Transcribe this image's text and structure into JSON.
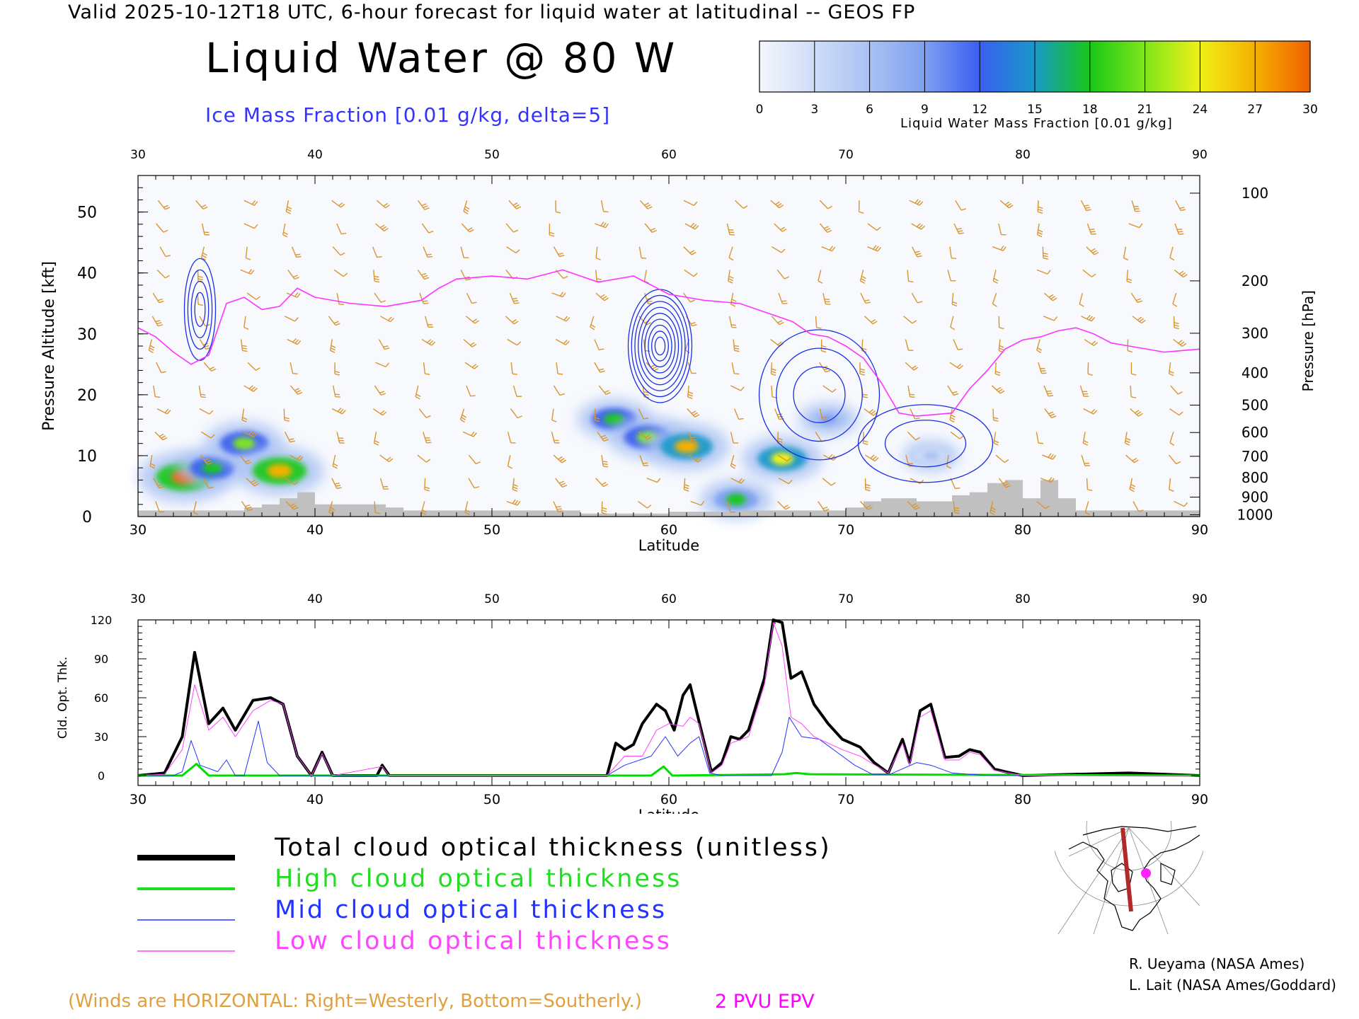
{
  "header": {
    "top_title": "Valid 2025-10-12T18 UTC, 6-hour forecast for liquid water at latitudinal -- GEOS FP",
    "main_title": "Liquid Water @ 80 W",
    "ice_label": "Ice Mass Fraction [0.01 g/kg, delta=5]"
  },
  "colorbar": {
    "label": "Liquid Water Mass Fraction [0.01 g/kg]",
    "ticks": [
      "0",
      "3",
      "6",
      "9",
      "12",
      "15",
      "18",
      "21",
      "24",
      "27",
      "30"
    ],
    "colors": [
      "#f4f6fc",
      "#cfdcf7",
      "#a9c1f3",
      "#7fa0f0",
      "#3a5ef0",
      "#1898c8",
      "#18c818",
      "#7ee61a",
      "#f0f018",
      "#f5b000",
      "#f06000"
    ]
  },
  "chart_data": [
    {
      "type": "heatmap",
      "xlabel": "Latitude",
      "ylabel": "Pressure Altitude [kft]",
      "ylabel_right": "Pressure [hPa]",
      "x_ticks": [
        "30",
        "40",
        "50",
        "60",
        "70",
        "80",
        "90"
      ],
      "y_ticks": [
        "0",
        "10",
        "20",
        "30",
        "40",
        "50"
      ],
      "pressure_ticks": [
        {
          "label": "100",
          "kft": 53.1
        },
        {
          "label": "200",
          "kft": 38.7
        },
        {
          "label": "300",
          "kft": 30.1
        },
        {
          "label": "400",
          "kft": 23.6
        },
        {
          "label": "500",
          "kft": 18.3
        },
        {
          "label": "600",
          "kft": 13.8
        },
        {
          "label": "700",
          "kft": 9.9
        },
        {
          "label": "800",
          "kft": 6.4
        },
        {
          "label": "900",
          "kft": 3.2
        },
        {
          "label": "1000",
          "kft": 0.3
        }
      ],
      "xlim": [
        30,
        90
      ],
      "ylim": [
        0,
        56
      ],
      "liquid_water_blobs": [
        {
          "lat": 32.6,
          "kft": 6.5,
          "value": 30
        },
        {
          "lat": 34.2,
          "kft": 8.0,
          "value": 18
        },
        {
          "lat": 36.0,
          "kft": 12.0,
          "value": 22
        },
        {
          "lat": 38.0,
          "kft": 7.5,
          "value": 28
        },
        {
          "lat": 56.9,
          "kft": 16.0,
          "value": 18
        },
        {
          "lat": 58.8,
          "kft": 13.0,
          "value": 21
        },
        {
          "lat": 61.0,
          "kft": 11.5,
          "value": 26
        },
        {
          "lat": 63.8,
          "kft": 2.8,
          "value": 17
        },
        {
          "lat": 66.4,
          "kft": 9.5,
          "value": 23
        },
        {
          "lat": 69.0,
          "kft": 16.0,
          "value": 9
        },
        {
          "lat": 74.8,
          "kft": 10.0,
          "value": 7
        }
      ],
      "epv_2pvu_line": [
        [
          30.0,
          31.0
        ],
        [
          31.0,
          29.5
        ],
        [
          32.0,
          27.0
        ],
        [
          33.0,
          25.0
        ],
        [
          34.0,
          26.5
        ],
        [
          35.0,
          35.0
        ],
        [
          36.0,
          36.0
        ],
        [
          37.0,
          34.0
        ],
        [
          38.0,
          34.5
        ],
        [
          39.0,
          37.5
        ],
        [
          40.0,
          36.0
        ],
        [
          42.0,
          35.0
        ],
        [
          44.0,
          34.5
        ],
        [
          46.0,
          35.5
        ],
        [
          47.0,
          37.5
        ],
        [
          48.0,
          39.0
        ],
        [
          50.0,
          39.5
        ],
        [
          52.0,
          39.0
        ],
        [
          54.0,
          40.5
        ],
        [
          56.0,
          38.5
        ],
        [
          58.0,
          39.5
        ],
        [
          60.0,
          36.5
        ],
        [
          61.0,
          36.0
        ],
        [
          62.0,
          35.5
        ],
        [
          64.0,
          35.0
        ],
        [
          66.0,
          33.0
        ],
        [
          67.0,
          32.0
        ],
        [
          68.0,
          30.0
        ],
        [
          69.0,
          29.5
        ],
        [
          70.0,
          28.0
        ],
        [
          71.0,
          26.0
        ],
        [
          72.0,
          22.0
        ],
        [
          73.0,
          17.0
        ],
        [
          74.0,
          16.5
        ],
        [
          76.0,
          17.0
        ],
        [
          77.0,
          21.0
        ],
        [
          78.0,
          24.0
        ],
        [
          79.0,
          27.5
        ],
        [
          80.0,
          29.0
        ],
        [
          81.0,
          29.5
        ],
        [
          82.0,
          30.5
        ],
        [
          83.0,
          31.0
        ],
        [
          84.0,
          30.0
        ],
        [
          85.0,
          28.5
        ],
        [
          86.0,
          28.0
        ],
        [
          88.0,
          27.0
        ],
        [
          90.0,
          27.5
        ]
      ],
      "ice_contour_centers": [
        {
          "lat": 33.5,
          "kft": 34.0
        },
        {
          "lat": 59.5,
          "kft": 28.0
        },
        {
          "lat": 68.5,
          "kft": 20.0
        },
        {
          "lat": 74.5,
          "kft": 12.0
        }
      ],
      "terrain": [
        [
          30,
          1.0
        ],
        [
          35,
          1.0
        ],
        [
          36,
          1.5
        ],
        [
          37,
          2.0
        ],
        [
          38,
          3.0
        ],
        [
          39,
          4.0
        ],
        [
          40,
          2.0
        ],
        [
          44,
          1.5
        ],
        [
          45,
          1.0
        ],
        [
          51,
          1.0
        ],
        [
          55,
          0.5
        ],
        [
          60,
          0.8
        ],
        [
          64,
          1.0
        ],
        [
          70,
          1.5
        ],
        [
          71,
          2.5
        ],
        [
          72,
          3.0
        ],
        [
          74,
          2.5
        ],
        [
          76,
          3.5
        ],
        [
          77,
          4.0
        ],
        [
          78,
          5.5
        ],
        [
          79,
          6.0
        ],
        [
          80,
          3.0
        ],
        [
          81,
          6.0
        ],
        [
          82,
          3.0
        ],
        [
          83,
          1.0
        ],
        [
          90,
          0.5
        ]
      ]
    },
    {
      "type": "line",
      "xlabel": "Latitude",
      "ylabel": "Cld. Opt. Thk.",
      "x_ticks": [
        "30",
        "40",
        "50",
        "60",
        "70",
        "80",
        "90"
      ],
      "y_ticks": [
        "0",
        "30",
        "60",
        "90",
        "120"
      ],
      "xlim": [
        30,
        90
      ],
      "ylim": [
        0,
        120
      ],
      "series": [
        {
          "name": "Total cloud optical thickness (unitless)",
          "color": "#000000",
          "width": 4,
          "points": [
            [
              30,
              0
            ],
            [
              31.5,
              2
            ],
            [
              32.5,
              30
            ],
            [
              33.2,
              95
            ],
            [
              34.0,
              40
            ],
            [
              34.8,
              52
            ],
            [
              35.5,
              35
            ],
            [
              36.5,
              58
            ],
            [
              37.5,
              60
            ],
            [
              38.2,
              55
            ],
            [
              39.0,
              15
            ],
            [
              39.8,
              0
            ],
            [
              40.4,
              18
            ],
            [
              41.0,
              0
            ],
            [
              43.5,
              0
            ],
            [
              43.8,
              8
            ],
            [
              44.2,
              0
            ],
            [
              56.5,
              0
            ],
            [
              57.0,
              25
            ],
            [
              57.5,
              20
            ],
            [
              58.0,
              24
            ],
            [
              58.5,
              40
            ],
            [
              59.3,
              55
            ],
            [
              59.8,
              50
            ],
            [
              60.3,
              35
            ],
            [
              60.8,
              62
            ],
            [
              61.2,
              70
            ],
            [
              61.7,
              42
            ],
            [
              62.4,
              3
            ],
            [
              63.0,
              10
            ],
            [
              63.5,
              30
            ],
            [
              64.0,
              28
            ],
            [
              64.5,
              35
            ],
            [
              65.4,
              75
            ],
            [
              65.9,
              120
            ],
            [
              66.4,
              118
            ],
            [
              66.9,
              75
            ],
            [
              67.5,
              80
            ],
            [
              68.2,
              55
            ],
            [
              69.0,
              40
            ],
            [
              69.8,
              28
            ],
            [
              70.8,
              22
            ],
            [
              71.6,
              10
            ],
            [
              72.4,
              2
            ],
            [
              73.2,
              28
            ],
            [
              73.6,
              10
            ],
            [
              74.2,
              50
            ],
            [
              74.8,
              55
            ],
            [
              75.6,
              14
            ],
            [
              76.4,
              15
            ],
            [
              77.0,
              20
            ],
            [
              77.6,
              18
            ],
            [
              78.4,
              5
            ],
            [
              79.0,
              3
            ],
            [
              80.0,
              0
            ],
            [
              86.0,
              2
            ],
            [
              88.0,
              1
            ],
            [
              90,
              0
            ]
          ]
        },
        {
          "name": "High cloud optical thickness",
          "color": "#00dd00",
          "width": 3,
          "points": [
            [
              30,
              0
            ],
            [
              32.5,
              0
            ],
            [
              33.3,
              9
            ],
            [
              34.0,
              0
            ],
            [
              59.0,
              0
            ],
            [
              59.7,
              7
            ],
            [
              60.2,
              0
            ],
            [
              66.5,
              1
            ],
            [
              67.2,
              2
            ],
            [
              68.0,
              1
            ],
            [
              90,
              0
            ]
          ]
        },
        {
          "name": "Mid cloud optical thickness",
          "color": "#2233ff",
          "width": 1,
          "points": [
            [
              30,
              0
            ],
            [
              32.0,
              0
            ],
            [
              32.5,
              3
            ],
            [
              33.0,
              27
            ],
            [
              33.5,
              8
            ],
            [
              34.5,
              3
            ],
            [
              35.0,
              12
            ],
            [
              35.5,
              0
            ],
            [
              36.0,
              0
            ],
            [
              36.8,
              42
            ],
            [
              37.3,
              10
            ],
            [
              38.0,
              0
            ],
            [
              56.5,
              0
            ],
            [
              57.5,
              8
            ],
            [
              59.0,
              15
            ],
            [
              59.8,
              30
            ],
            [
              60.5,
              15
            ],
            [
              61.2,
              25
            ],
            [
              61.7,
              30
            ],
            [
              62.3,
              2
            ],
            [
              63.0,
              0
            ],
            [
              65.8,
              0
            ],
            [
              66.4,
              18
            ],
            [
              66.8,
              45
            ],
            [
              67.5,
              30
            ],
            [
              68.5,
              28
            ],
            [
              69.5,
              18
            ],
            [
              70.5,
              8
            ],
            [
              71.5,
              1
            ],
            [
              72.5,
              1
            ],
            [
              74.0,
              10
            ],
            [
              74.8,
              8
            ],
            [
              76.0,
              2
            ],
            [
              78.0,
              0
            ],
            [
              90,
              0
            ]
          ]
        },
        {
          "name": "Low cloud optical thickness",
          "color": "#ff44ff",
          "width": 1,
          "points": [
            [
              30,
              0
            ],
            [
              31.5,
              1
            ],
            [
              32.5,
              20
            ],
            [
              33.2,
              70
            ],
            [
              34.0,
              35
            ],
            [
              34.8,
              45
            ],
            [
              35.5,
              30
            ],
            [
              36.5,
              50
            ],
            [
              37.5,
              58
            ],
            [
              38.2,
              55
            ],
            [
              39.0,
              15
            ],
            [
              39.8,
              0
            ],
            [
              40.4,
              17
            ],
            [
              41.0,
              0
            ],
            [
              43.8,
              7
            ],
            [
              44.2,
              0
            ],
            [
              56.5,
              0
            ],
            [
              57.5,
              15
            ],
            [
              58.5,
              15
            ],
            [
              59.3,
              35
            ],
            [
              60.0,
              40
            ],
            [
              60.8,
              38
            ],
            [
              61.2,
              45
            ],
            [
              61.7,
              40
            ],
            [
              62.4,
              2
            ],
            [
              63.0,
              8
            ],
            [
              63.5,
              25
            ],
            [
              64.5,
              30
            ],
            [
              65.4,
              70
            ],
            [
              65.9,
              118
            ],
            [
              66.4,
              100
            ],
            [
              66.9,
              45
            ],
            [
              67.5,
              40
            ],
            [
              68.2,
              30
            ],
            [
              69.0,
              25
            ],
            [
              69.8,
              20
            ],
            [
              70.8,
              15
            ],
            [
              72.4,
              2
            ],
            [
              73.2,
              25
            ],
            [
              73.6,
              8
            ],
            [
              74.2,
              45
            ],
            [
              74.8,
              50
            ],
            [
              75.6,
              12
            ],
            [
              76.4,
              12
            ],
            [
              77.0,
              18
            ],
            [
              77.6,
              16
            ],
            [
              78.4,
              4
            ],
            [
              80.0,
              0
            ],
            [
              90,
              0
            ]
          ]
        }
      ]
    }
  ],
  "legend": [
    {
      "label": "Total cloud optical thickness (unitless)",
      "color": "#000000"
    },
    {
      "label": "High cloud optical thickness",
      "color": "#22dd22"
    },
    {
      "label": "Mid cloud optical thickness",
      "color": "#2233ff"
    },
    {
      "label": "Low cloud optical thickness",
      "color": "#ff44ff"
    }
  ],
  "notes": {
    "winds": "(Winds are HORIZONTAL: Right=Westerly, Bottom=Southerly.)",
    "epv": "2 PVU EPV"
  },
  "credits": {
    "line1": "R. Ueyama (NASA Ames)",
    "line2": "L. Lait (NASA Ames/Goddard)"
  },
  "colors": {
    "wind_barb": "#d99530",
    "epv_line": "#ff33ff",
    "ice_contour": "#1a2ee6",
    "terrain": "#c0c0c0",
    "map_marker": "#ff22ff",
    "map_track": "#b02a2a"
  }
}
